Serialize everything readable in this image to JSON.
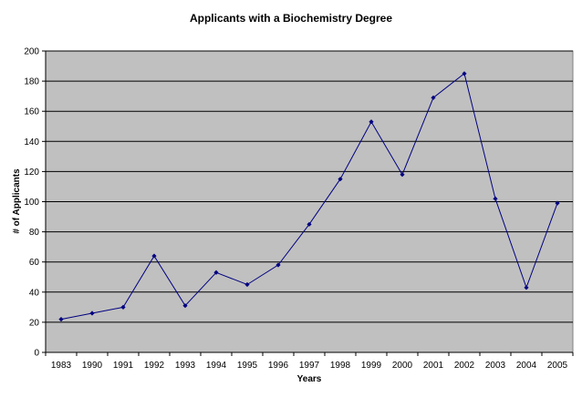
{
  "chart_data": {
    "type": "line",
    "title": "Applicants with a Biochemistry Degree",
    "xlabel": "Years",
    "ylabel": "# of Applicants",
    "categories": [
      "1983",
      "1990",
      "1991",
      "1992",
      "1993",
      "1994",
      "1995",
      "1996",
      "1997",
      "1998",
      "1999",
      "2000",
      "2001",
      "2002",
      "2003",
      "2004",
      "2005"
    ],
    "series": [
      {
        "values": [
          22,
          26,
          30,
          64,
          31,
          53,
          45,
          58,
          85,
          115,
          153,
          118,
          169,
          185,
          102,
          43,
          99
        ]
      }
    ],
    "ylim": [
      0,
      200
    ],
    "yticks": [
      0,
      20,
      40,
      60,
      80,
      100,
      120,
      140,
      160,
      180,
      200
    ],
    "grid": "horizontal",
    "legend": "none",
    "colors": {
      "plot_background": "#c0c0c0",
      "line": "#000080",
      "marker": "#000080",
      "grid": "#000000"
    }
  }
}
